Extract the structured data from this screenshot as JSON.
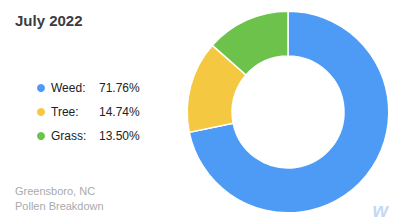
{
  "chart_data": {
    "type": "pie",
    "title": "July 2022",
    "subtitle": "Greensboro, NC\nPollen Breakdown",
    "categories": [
      "Weed:",
      "Tree:",
      "Grass:"
    ],
    "values": [
      71.76,
      14.74,
      13.5
    ],
    "value_labels": [
      "71.76%",
      "14.74%",
      "13.50%"
    ],
    "colors": [
      "#4d9bf5",
      "#f5c842",
      "#6cc24a"
    ],
    "legend": "left",
    "annotations": [
      {
        "text": "w"
      }
    ]
  }
}
